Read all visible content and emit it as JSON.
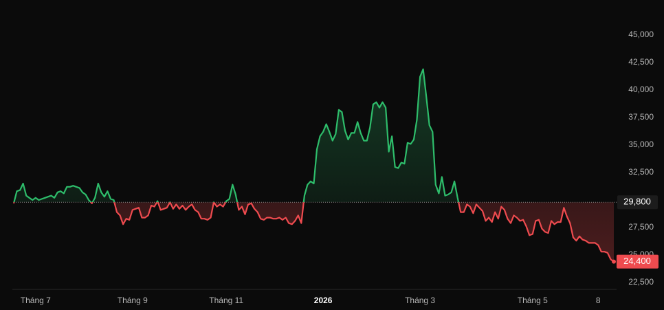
{
  "chart_data": {
    "type": "baseline",
    "values": [
      29700,
      30800,
      30900,
      31500,
      30400,
      30200,
      30000,
      30200,
      30000,
      30100,
      30200,
      30300,
      30400,
      30200,
      30700,
      30800,
      30600,
      31200,
      31200,
      31300,
      31200,
      31100,
      30700,
      30500,
      30000,
      29700,
      30200,
      31500,
      30700,
      30300,
      30800,
      30100,
      30000,
      28900,
      28600,
      27800,
      28300,
      28200,
      29100,
      29200,
      29300,
      28400,
      28400,
      28600,
      29500,
      29400,
      29900,
      29100,
      29200,
      29300,
      29800,
      29200,
      29600,
      29200,
      29500,
      29100,
      29400,
      29600,
      29100,
      28900,
      28300,
      28300,
      28200,
      28400,
      29800,
      29400,
      29600,
      29400,
      29900,
      30100,
      31400,
      30500,
      29100,
      29400,
      28700,
      29600,
      29700,
      29200,
      28900,
      28300,
      28200,
      28400,
      28400,
      28300,
      28300,
      28400,
      28200,
      28400,
      27900,
      27800,
      28100,
      28600,
      27900,
      30400,
      31400,
      31700,
      31500,
      34600,
      35800,
      36200,
      36900,
      36200,
      35400,
      36000,
      38200,
      38000,
      36300,
      35500,
      36100,
      36100,
      37100,
      36100,
      35400,
      35400,
      36600,
      38700,
      38900,
      38400,
      38900,
      38400,
      34400,
      35800,
      33000,
      32900,
      33400,
      33300,
      35200,
      35100,
      35500,
      37300,
      41200,
      41900,
      39400,
      36800,
      36200,
      31400,
      30600,
      32100,
      30400,
      30500,
      30700,
      31700,
      30200,
      28900,
      28900,
      29600,
      29400,
      28800,
      29600,
      29300,
      29000,
      28100,
      28400,
      28000,
      28900,
      28300,
      29400,
      29100,
      28300,
      27900,
      28600,
      28400,
      28100,
      28200,
      27600,
      26800,
      26900,
      28100,
      28200,
      27400,
      27100,
      27000,
      28100,
      27800,
      28000,
      28000,
      29300,
      28500,
      27900,
      26600,
      26300,
      26700,
      26400,
      26300,
      26100,
      26100,
      26100,
      25900,
      25300,
      25300,
      25200,
      24600,
      24400
    ],
    "baseline": {
      "value": 29800,
      "label": "29,800"
    },
    "last_price": {
      "value": 24400,
      "label": "24,400"
    },
    "color_up": "#2ebd6b",
    "color_down": "#ef4b4f",
    "ylim": [
      21875,
      48187.5
    ],
    "yticks": [
      {
        "value": 22500,
        "label": "22,500"
      },
      {
        "value": 25000,
        "label": "25,000"
      },
      {
        "value": 27500,
        "label": "27,500"
      },
      {
        "value": 32500,
        "label": "32,500"
      },
      {
        "value": 35000,
        "label": "35,000"
      },
      {
        "value": 37500,
        "label": "37,500"
      },
      {
        "value": 40000,
        "label": "40,000"
      },
      {
        "value": 42500,
        "label": "42,500"
      },
      {
        "value": 45000,
        "label": "45,000"
      }
    ],
    "xticks": [
      {
        "value": 7,
        "label": "Tháng 7"
      },
      {
        "value": 38,
        "label": "Tháng 9"
      },
      {
        "value": 68,
        "label": "Tháng 11"
      },
      {
        "value": 99,
        "label": "2026"
      },
      {
        "value": 130,
        "label": "Tháng 3"
      },
      {
        "value": 166,
        "label": "Tháng 5"
      },
      {
        "value": 187,
        "label": "8"
      }
    ]
  }
}
